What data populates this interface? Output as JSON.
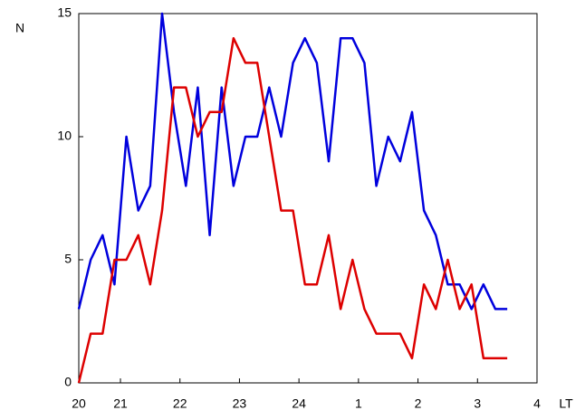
{
  "chart_data": {
    "type": "line",
    "ylabel": "N",
    "xlabel": "LT",
    "x": [
      20.3,
      20.5,
      20.7,
      20.9,
      21.1,
      21.3,
      21.5,
      21.7,
      21.9,
      22.1,
      22.3,
      22.5,
      22.7,
      22.9,
      23.1,
      23.3,
      23.5,
      23.7,
      23.9,
      24.1,
      24.3,
      24.5,
      24.7,
      24.9,
      25.1,
      25.3,
      25.5,
      25.7,
      25.9,
      26.1,
      26.3,
      26.5,
      26.7,
      26.9,
      27.1,
      27.3,
      27.5
    ],
    "series": [
      {
        "color": "#0000dd",
        "values": [
          3,
          5,
          6,
          4,
          10,
          7,
          8,
          15,
          11,
          8,
          12,
          6,
          12,
          8,
          10,
          10,
          12,
          10,
          13,
          14,
          13,
          9,
          14,
          14,
          13,
          8,
          10,
          9,
          11,
          7,
          6,
          4,
          4,
          3,
          4,
          3,
          3
        ]
      },
      {
        "color": "#dd0000",
        "values": [
          0,
          2,
          2,
          5,
          5,
          6,
          4,
          7,
          12,
          12,
          10,
          11,
          11,
          14,
          13,
          13,
          10,
          7,
          7,
          4,
          4,
          6,
          3,
          5,
          3,
          2,
          2,
          2,
          1,
          4,
          3,
          5,
          3,
          4,
          1,
          1,
          1
        ]
      }
    ],
    "xlim": [
      20.3,
      28
    ],
    "ylim": [
      0,
      15
    ],
    "xticks": [
      {
        "value": 20.3,
        "label": "20"
      },
      21,
      22,
      23,
      24,
      {
        "value": 25,
        "label": "1"
      },
      {
        "value": 26,
        "label": "2"
      },
      {
        "value": 27,
        "label": "3"
      },
      {
        "value": 28,
        "label": "4"
      }
    ],
    "yticks": [
      0,
      5,
      10,
      15
    ]
  }
}
